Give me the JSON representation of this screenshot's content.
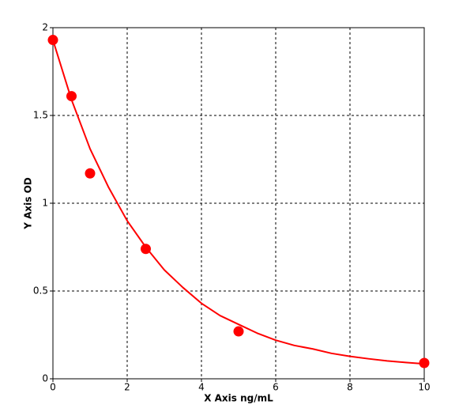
{
  "chart_data": {
    "type": "scatter",
    "xlabel": "X Axis ng/mL",
    "ylabel": "Y Axis OD",
    "points": {
      "x": [
        0,
        0.5,
        1,
        2.5,
        5,
        10
      ],
      "y": [
        1.93,
        1.61,
        1.17,
        0.74,
        0.27,
        0.09
      ]
    },
    "fit": {
      "x": [
        0,
        0.5,
        1,
        1.5,
        2,
        2.5,
        3,
        3.5,
        4,
        4.5,
        5,
        5.5,
        6,
        6.5,
        7,
        7.5,
        8,
        8.5,
        9,
        9.5,
        10
      ],
      "y": [
        1.93,
        1.59,
        1.31,
        1.09,
        0.9,
        0.75,
        0.62,
        0.52,
        0.43,
        0.36,
        0.31,
        0.26,
        0.22,
        0.19,
        0.17,
        0.145,
        0.128,
        0.114,
        0.102,
        0.093,
        0.085
      ]
    },
    "color": "#ff0000",
    "xlim": [
      0,
      10
    ],
    "xticks": [
      0,
      2,
      4,
      6,
      8,
      10
    ],
    "ylim": [
      0,
      2
    ],
    "yticks": [
      0,
      0.5,
      1,
      1.5,
      2
    ],
    "grid": true
  }
}
